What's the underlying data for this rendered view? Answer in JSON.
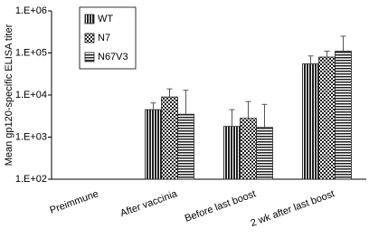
{
  "chart_data": {
    "type": "bar",
    "y_label": "Mean gp120-specific ELISA titer",
    "categories": [
      "Preimmune",
      "After vaccinia",
      "Before last boost",
      "2 wk after last boost"
    ],
    "log_scale": true,
    "ylim": [
      100,
      1000000
    ],
    "yticks": [
      {
        "value": 100,
        "label": "1.E+02"
      },
      {
        "value": 1000,
        "label": "1.E+03"
      },
      {
        "value": 10000,
        "label": "1.E+04"
      },
      {
        "value": 100000,
        "label": "1.E+05"
      },
      {
        "value": 1000000,
        "label": "1.E+06"
      }
    ],
    "legend": "upper left",
    "series": [
      {
        "name": "WT",
        "color": "#222222",
        "pattern": "vertical",
        "values": [
          null,
          4500,
          1800,
          55000
        ],
        "errors": [
          null,
          2000,
          2700,
          30000
        ]
      },
      {
        "name": "N7",
        "color": "#222222",
        "pattern": "checker",
        "values": [
          null,
          9000,
          2800,
          80000
        ],
        "errors": [
          null,
          5000,
          4200,
          30000
        ]
      },
      {
        "name": "N67V3",
        "color": "#222222",
        "pattern": "horizontal",
        "values": [
          null,
          3500,
          1700,
          110000
        ],
        "errors": [
          null,
          9500,
          4300,
          140000
        ]
      }
    ]
  }
}
